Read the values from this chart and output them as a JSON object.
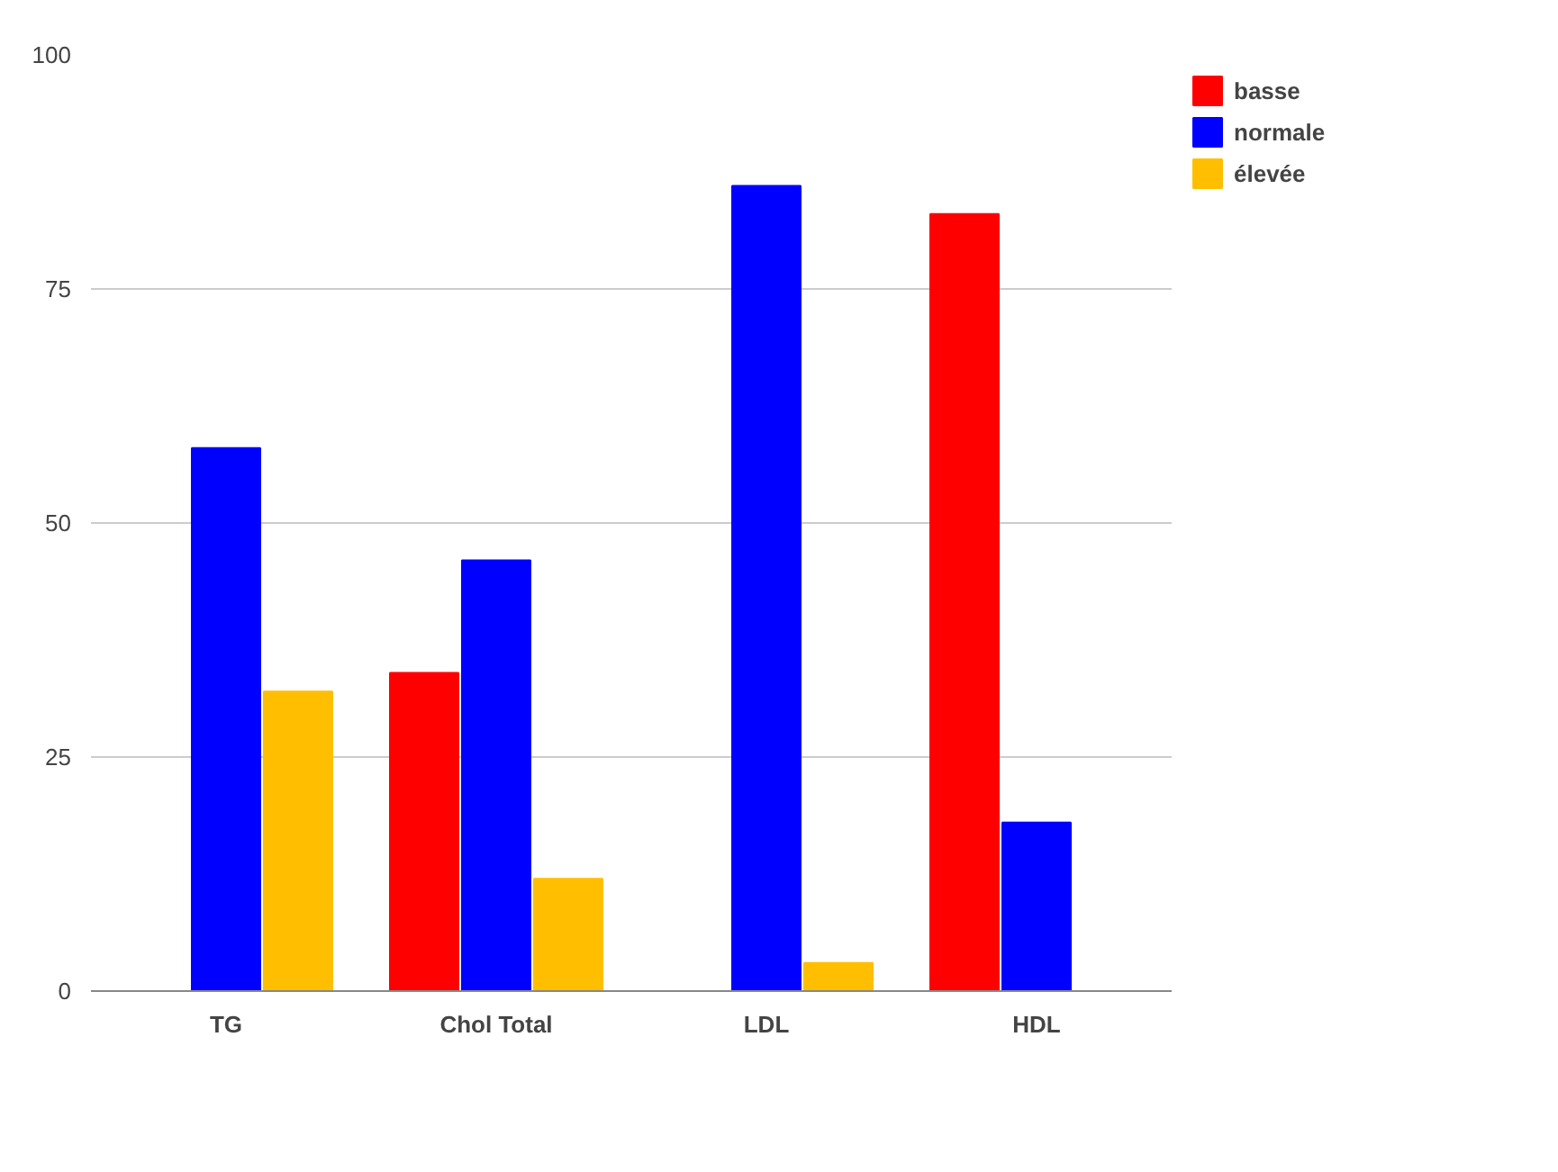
{
  "chart_data": {
    "type": "bar",
    "categories": [
      "TG",
      "Chol Total",
      "LDL",
      "HDL"
    ],
    "series": [
      {
        "name": "basse",
        "color": "#ff0000",
        "values": [
          0,
          34,
          0,
          83
        ]
      },
      {
        "name": "normale",
        "color": "#0000ff",
        "values": [
          58,
          46,
          86,
          18
        ]
      },
      {
        "name": "élevée",
        "color": "#ffbf00",
        "values": [
          32,
          12,
          3,
          0
        ]
      }
    ],
    "ylim": [
      0,
      100
    ],
    "yticks": [
      0,
      25,
      50,
      75,
      100
    ],
    "grid": "y",
    "legend": "top right"
  }
}
